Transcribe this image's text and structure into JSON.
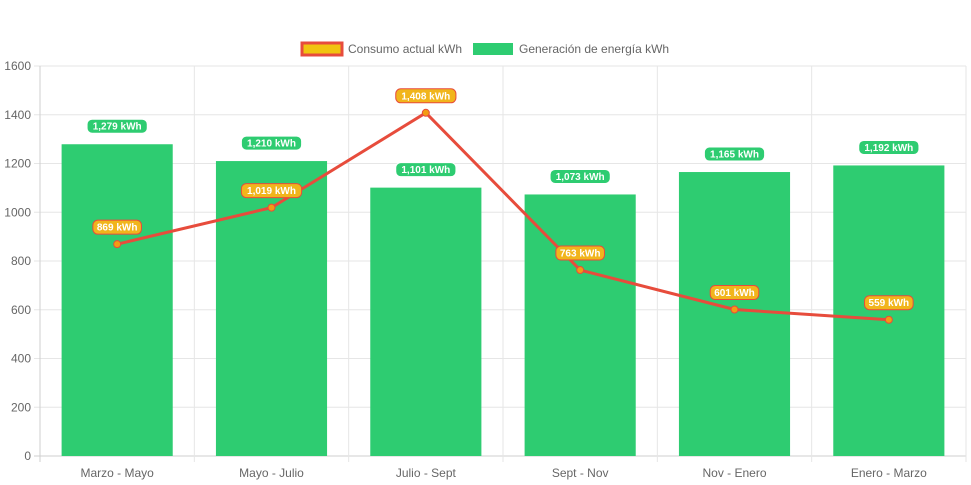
{
  "chart_data": {
    "type": "bar",
    "categories": [
      "Marzo - Mayo",
      "Mayo - Julio",
      "Julio - Sept",
      "Sept - Nov",
      "Nov - Enero",
      "Enero - Marzo"
    ],
    "ylim": [
      0,
      1600
    ],
    "yticks": [
      0,
      200,
      400,
      600,
      800,
      1000,
      1200,
      1400,
      1600
    ],
    "grid": true,
    "legend_position": "top",
    "series": [
      {
        "name": "Consumo actual kWh",
        "type": "line",
        "color": "#e74c3c",
        "point_color": "#f39c12",
        "label_color": "#f1b51c",
        "values": [
          869,
          1019,
          1408,
          763,
          601,
          559
        ],
        "labels": [
          "869 kWh",
          "1,019 kWh",
          "1,408 kWh",
          "763 kWh",
          "601 kWh",
          "559 kWh"
        ]
      },
      {
        "name": "Generación de energía kWh",
        "type": "bar",
        "color": "#2ecc71",
        "values": [
          1279,
          1210,
          1101,
          1073,
          1165,
          1192
        ],
        "labels": [
          "1,279 kWh",
          "1,210 kWh",
          "1,101 kWh",
          "1,073 kWh",
          "1,165 kWh",
          "1,192 kWh"
        ]
      }
    ]
  }
}
